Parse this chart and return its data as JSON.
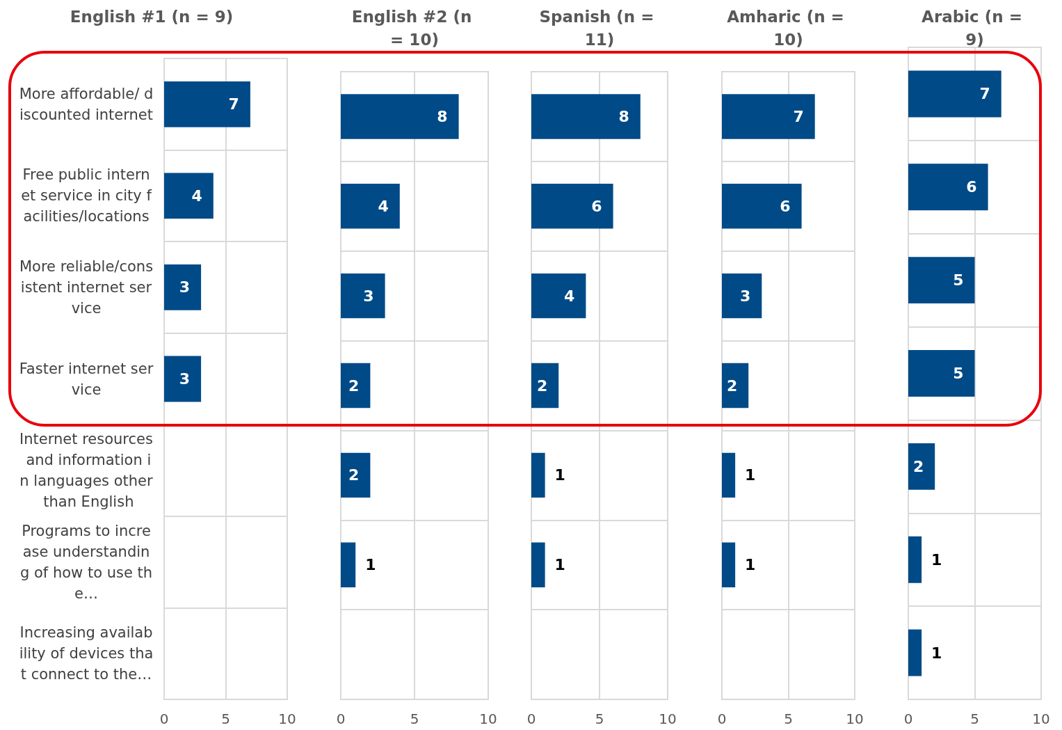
{
  "chart_data": [
    {
      "type": "bar",
      "orientation": "horizontal",
      "title": "English #1 (n = 9)",
      "categories": [
        "More affordable/ discounted internet",
        "Free public internet service in city facilities/locations",
        "More reliable/consistent internet service",
        "Faster internet service",
        "Internet resources and information in languages other than English",
        "Programs to increase understanding of how to use the…",
        "Increasing availability of devices that connect to the…"
      ],
      "values": [
        7,
        4,
        3,
        3,
        null,
        null,
        null
      ],
      "color": "#004a87",
      "xlim": [
        0,
        10
      ],
      "xticks": [
        0,
        5,
        10
      ],
      "grid": true,
      "data_labels": true
    },
    {
      "type": "bar",
      "orientation": "horizontal",
      "title": "English #2 (n = 10)",
      "categories": [
        "More affordable/ discounted internet",
        "Free public internet service in city facilities/locations",
        "More reliable/consistent internet service",
        "Faster internet service",
        "Internet resources and information in languages other than English",
        "Programs to increase understanding of how to use the…",
        "Increasing availability of devices that connect to the…"
      ],
      "values": [
        8,
        4,
        3,
        2,
        2,
        1,
        null
      ],
      "color": "#004a87",
      "xlim": [
        0,
        10
      ],
      "xticks": [
        0,
        5,
        10
      ],
      "grid": true,
      "data_labels": true,
      "tick_labels": "x"
    },
    {
      "type": "bar",
      "orientation": "horizontal",
      "title": "Spanish (n = 11)",
      "categories": [
        "More affordable/ discounted internet",
        "Free public internet service in city facilities/locations",
        "More reliable/consistent internet service",
        "Faster internet service",
        "Internet resources and information in languages other than English",
        "Programs to increase understanding of how to use the…",
        "Increasing availability of devices that connect to the…"
      ],
      "values": [
        8,
        6,
        4,
        2,
        1,
        1,
        null
      ],
      "color": "#004a87",
      "xlim": [
        0,
        10
      ],
      "xticks": [
        0,
        5,
        10
      ],
      "grid": true,
      "data_labels": true,
      "tick_labels": "x"
    },
    {
      "type": "bar",
      "orientation": "horizontal",
      "title": "Amharic (n = 10)",
      "categories": [
        "More affordable/ discounted internet",
        "Free public internet service in city facilities/locations",
        "More reliable/consistent internet service",
        "Faster internet service",
        "Internet resources and information in languages other than English",
        "Programs to increase understanding of how to use the…",
        "Increasing availability of devices that connect to the…"
      ],
      "values": [
        7,
        6,
        3,
        2,
        1,
        1,
        null
      ],
      "color": "#004a87",
      "xlim": [
        0,
        10
      ],
      "xticks": [
        0,
        5,
        10
      ],
      "grid": true,
      "data_labels": true,
      "tick_labels": "x"
    },
    {
      "type": "bar",
      "orientation": "horizontal",
      "title": "Arabic (n = 9)",
      "categories": [
        "More affordable/ discounted internet",
        "Free public internet service in city facilities/locations",
        "More reliable/consistent internet service",
        "Faster internet service",
        "Internet resources and information in languages other than English",
        "Programs to increase understanding of how to use the…",
        "Increasing availability of devices that connect to the…"
      ],
      "values": [
        7,
        6,
        5,
        5,
        2,
        1,
        1
      ],
      "color": "#004a87",
      "xlim": [
        0,
        10
      ],
      "xticks": [
        0,
        5,
        10
      ],
      "grid": true,
      "data_labels": true,
      "tick_labels": "x"
    }
  ]
}
